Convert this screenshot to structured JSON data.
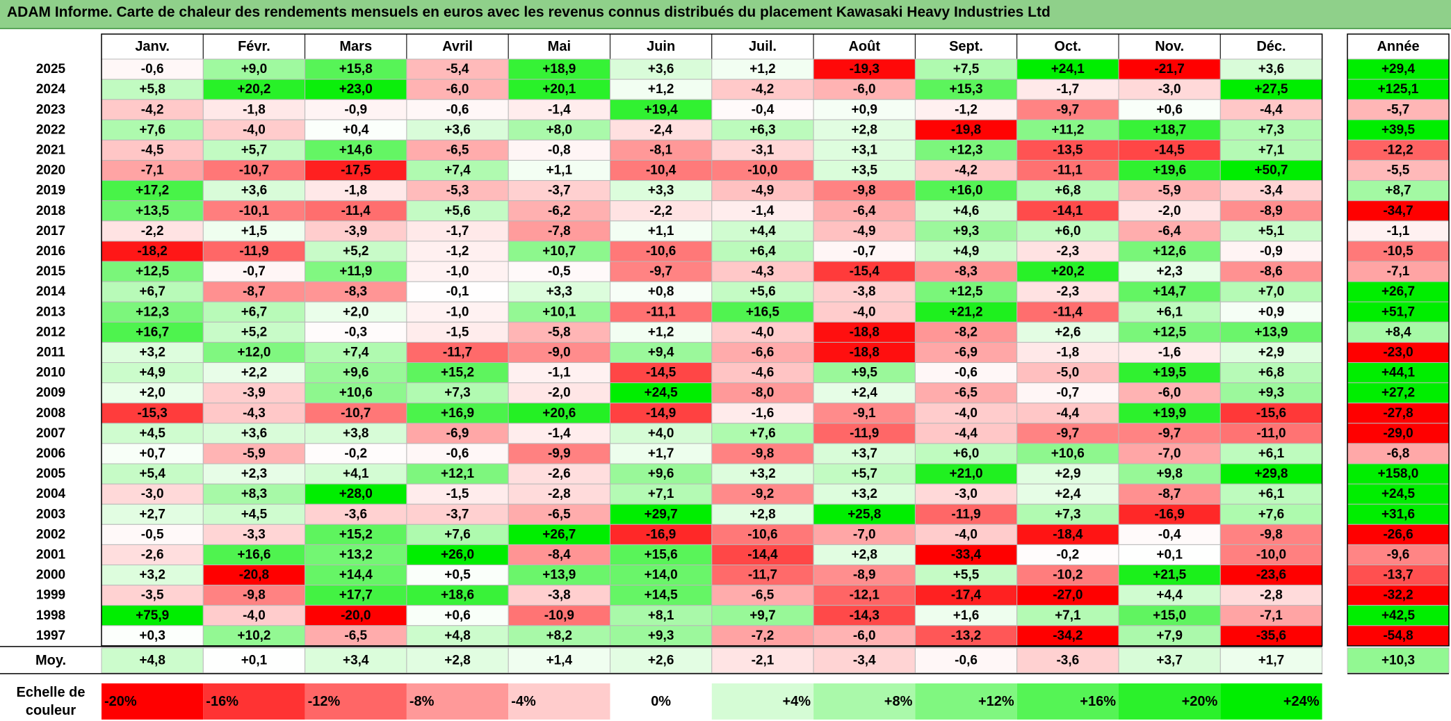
{
  "title": "ADAM Informe. Carte de chaleur des rendements mensuels en euros avec les revenus connus distribués du placement Kawasaki Heavy Industries Ltd",
  "chart_data": {
    "type": "heatmap",
    "title": "ADAM Informe. Carte de chaleur des rendements mensuels en euros avec les revenus connus distribués du placement Kawasaki Heavy Industries Ltd",
    "columns": [
      "Janv.",
      "Févr.",
      "Mars",
      "Avril",
      "Mai",
      "Juin",
      "Juil.",
      "Août",
      "Sept.",
      "Oct.",
      "Nov.",
      "Déc."
    ],
    "annual_label": "Année",
    "rows": [
      {
        "year": "2025",
        "values": [
          -0.6,
          9.0,
          15.8,
          -5.4,
          18.9,
          3.6,
          1.2,
          -19.3,
          7.5,
          24.1,
          -21.7,
          3.6
        ],
        "annual": 29.4
      },
      {
        "year": "2024",
        "values": [
          5.8,
          20.2,
          23.0,
          -6.0,
          20.1,
          1.2,
          -4.2,
          -6.0,
          15.3,
          -1.7,
          -3.0,
          27.5
        ],
        "annual": 125.1
      },
      {
        "year": "2023",
        "values": [
          -4.2,
          -1.8,
          -0.9,
          -0.6,
          -1.4,
          19.4,
          -0.4,
          0.9,
          -1.2,
          -9.7,
          0.6,
          -4.4
        ],
        "annual": -5.7
      },
      {
        "year": "2022",
        "values": [
          7.6,
          -4.0,
          0.4,
          3.6,
          8.0,
          -2.4,
          6.3,
          2.8,
          -19.8,
          11.2,
          18.7,
          7.3
        ],
        "annual": 39.5
      },
      {
        "year": "2021",
        "values": [
          -4.5,
          5.7,
          14.6,
          -6.5,
          -0.8,
          -8.1,
          -3.1,
          3.1,
          12.3,
          -13.5,
          -14.5,
          7.1
        ],
        "annual": -12.2
      },
      {
        "year": "2020",
        "values": [
          -7.1,
          -10.7,
          -17.5,
          7.4,
          1.1,
          -10.4,
          -10.0,
          3.5,
          -4.2,
          -11.1,
          19.6,
          50.7
        ],
        "annual": -5.5
      },
      {
        "year": "2019",
        "values": [
          17.2,
          3.6,
          -1.8,
          -5.3,
          -3.7,
          3.3,
          -4.9,
          -9.8,
          16.0,
          6.8,
          -5.9,
          -3.4
        ],
        "annual": 8.7
      },
      {
        "year": "2018",
        "values": [
          13.5,
          -10.1,
          -11.4,
          5.6,
          -6.2,
          -2.2,
          -1.4,
          -6.4,
          4.6,
          -14.1,
          -2.0,
          -8.9
        ],
        "annual": -34.7
      },
      {
        "year": "2017",
        "values": [
          -2.2,
          1.5,
          -3.9,
          -1.7,
          -7.8,
          1.1,
          4.4,
          -4.9,
          9.3,
          6.0,
          -6.4,
          5.1
        ],
        "annual": -1.1
      },
      {
        "year": "2016",
        "values": [
          -18.2,
          -11.9,
          5.2,
          -1.2,
          10.7,
          -10.6,
          6.4,
          -0.7,
          4.9,
          -2.3,
          12.6,
          -0.9
        ],
        "annual": -10.5
      },
      {
        "year": "2015",
        "values": [
          12.5,
          -0.7,
          11.9,
          -1.0,
          -0.5,
          -9.7,
          -4.3,
          -15.4,
          -8.3,
          20.2,
          2.3,
          -8.6
        ],
        "annual": -7.1
      },
      {
        "year": "2014",
        "values": [
          6.7,
          -8.7,
          -8.3,
          -0.1,
          3.3,
          0.8,
          5.6,
          -3.8,
          12.5,
          -2.3,
          14.7,
          7.0
        ],
        "annual": 26.7
      },
      {
        "year": "2013",
        "values": [
          12.3,
          6.7,
          2.0,
          -1.0,
          10.1,
          -11.1,
          16.5,
          -4.0,
          21.2,
          -11.4,
          6.1,
          0.9
        ],
        "annual": 51.7
      },
      {
        "year": "2012",
        "values": [
          16.7,
          5.2,
          -0.3,
          -1.5,
          -5.8,
          1.2,
          -4.0,
          -18.8,
          -8.2,
          2.6,
          12.5,
          13.9
        ],
        "annual": 8.4
      },
      {
        "year": "2011",
        "values": [
          3.2,
          12.0,
          7.4,
          -11.7,
          -9.0,
          9.4,
          -6.6,
          -18.8,
          -6.9,
          -1.8,
          -1.6,
          2.9
        ],
        "annual": -23.0
      },
      {
        "year": "2010",
        "values": [
          4.9,
          2.2,
          9.6,
          15.2,
          -1.1,
          -14.5,
          -4.6,
          9.5,
          -0.6,
          -5.0,
          19.5,
          6.8
        ],
        "annual": 44.1
      },
      {
        "year": "2009",
        "values": [
          2.0,
          -3.9,
          10.6,
          7.3,
          -2.0,
          24.5,
          -8.0,
          2.4,
          -6.5,
          -0.7,
          -6.0,
          9.3
        ],
        "annual": 27.2
      },
      {
        "year": "2008",
        "values": [
          -15.3,
          -4.3,
          -10.7,
          16.9,
          20.6,
          -14.9,
          -1.6,
          -9.1,
          -4.0,
          -4.4,
          19.9,
          -15.6
        ],
        "annual": -27.8
      },
      {
        "year": "2007",
        "values": [
          4.5,
          3.6,
          3.8,
          -6.9,
          -1.4,
          4.0,
          7.6,
          -11.9,
          -4.4,
          -9.7,
          -9.7,
          -11.0
        ],
        "annual": -29.0
      },
      {
        "year": "2006",
        "values": [
          0.7,
          -5.9,
          -0.2,
          -0.6,
          -9.9,
          1.7,
          -9.8,
          3.7,
          6.0,
          10.6,
          -7.0,
          6.1
        ],
        "annual": -6.8
      },
      {
        "year": "2005",
        "values": [
          5.4,
          2.3,
          4.1,
          12.1,
          -2.6,
          9.6,
          3.2,
          5.7,
          21.0,
          2.9,
          9.8,
          29.8
        ],
        "annual": 158.0
      },
      {
        "year": "2004",
        "values": [
          -3.0,
          8.3,
          28.0,
          -1.5,
          -2.8,
          7.1,
          -9.2,
          3.2,
          -3.0,
          2.4,
          -8.7,
          6.1
        ],
        "annual": 24.5
      },
      {
        "year": "2003",
        "values": [
          2.7,
          4.5,
          -3.6,
          -3.7,
          -6.5,
          29.7,
          2.8,
          25.8,
          -11.9,
          7.3,
          -16.9,
          7.6
        ],
        "annual": 31.6
      },
      {
        "year": "2002",
        "values": [
          -0.5,
          -3.3,
          15.2,
          7.6,
          26.7,
          -16.9,
          -10.6,
          -7.0,
          -4.0,
          -18.4,
          -0.4,
          -9.8
        ],
        "annual": -26.6
      },
      {
        "year": "2001",
        "values": [
          -2.6,
          16.6,
          13.2,
          26.0,
          -8.4,
          15.6,
          -14.4,
          2.8,
          -33.4,
          -0.2,
          0.1,
          -10.0
        ],
        "annual": -9.6
      },
      {
        "year": "2000",
        "values": [
          3.2,
          -20.8,
          14.4,
          0.5,
          13.9,
          14.0,
          -11.7,
          -8.9,
          5.5,
          -10.2,
          21.5,
          -23.6
        ],
        "annual": -13.7
      },
      {
        "year": "1999",
        "values": [
          -3.5,
          -9.8,
          17.7,
          18.6,
          -3.8,
          14.5,
          -6.5,
          -12.1,
          -17.4,
          -27.0,
          4.4,
          -2.8
        ],
        "annual": -32.2
      },
      {
        "year": "1998",
        "values": [
          75.9,
          -4.0,
          -20.0,
          0.6,
          -10.9,
          8.1,
          9.7,
          -14.3,
          1.6,
          7.1,
          15.0,
          -7.1
        ],
        "annual": 42.5
      },
      {
        "year": "1997",
        "values": [
          0.3,
          10.2,
          -6.5,
          4.8,
          8.2,
          9.3,
          -7.2,
          -6.0,
          -13.2,
          -34.2,
          7.9,
          -35.6
        ],
        "annual": -54.8
      }
    ],
    "average": {
      "label": "Moy.",
      "values": [
        4.8,
        0.1,
        3.4,
        2.8,
        1.4,
        2.6,
        -2.1,
        -3.4,
        -0.6,
        -3.6,
        3.7,
        1.7
      ],
      "annual": 10.3
    },
    "scale": {
      "label_line1": "Echelle de",
      "label_line2": "couleur",
      "values": [
        -20,
        -16,
        -12,
        -8,
        -4,
        0,
        4,
        8,
        12,
        16,
        20,
        24
      ],
      "labels": [
        "-20%",
        "-16%",
        "-12%",
        "-8%",
        "-4%",
        "0%",
        "+4%",
        "+8%",
        "+12%",
        "+16%",
        "+20%",
        "+24%"
      ]
    },
    "colors": {
      "negative": "#ff0000",
      "positive": "#00ee00",
      "neutral": "#ffffff"
    }
  }
}
